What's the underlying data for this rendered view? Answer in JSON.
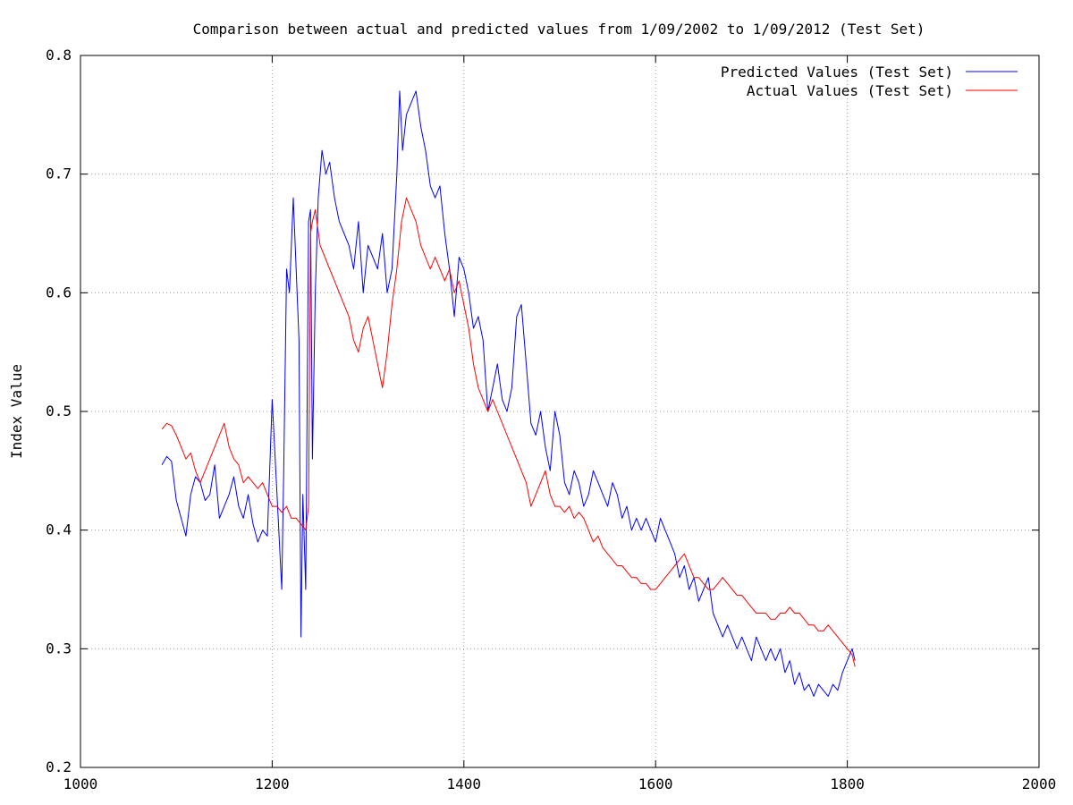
{
  "chart_data": {
    "type": "line",
    "title": "Comparison between actual and predicted values from 1/09/2002 to 1/09/2012 (Test Set)",
    "xlabel": "",
    "ylabel": "Index Value",
    "xlim": [
      1000,
      2000
    ],
    "ylim": [
      0.2,
      0.8
    ],
    "x_ticks": [
      "1000",
      "1200",
      "1400",
      "1600",
      "1800",
      "2000"
    ],
    "y_ticks": [
      "0.2",
      "0.3",
      "0.4",
      "0.5",
      "0.6",
      "0.7",
      "0.8"
    ],
    "grid": true,
    "legend_position": "top-right",
    "series": [
      {
        "name": "Predicted Values (Test Set)",
        "color": "#0000ff",
        "x": [
          1085,
          1090,
          1095,
          1100,
          1105,
          1110,
          1115,
          1120,
          1125,
          1130,
          1135,
          1140,
          1145,
          1150,
          1155,
          1160,
          1165,
          1170,
          1175,
          1180,
          1185,
          1190,
          1195,
          1200,
          1205,
          1210,
          1212,
          1215,
          1218,
          1222,
          1225,
          1228,
          1230,
          1232,
          1235,
          1238,
          1240,
          1242,
          1245,
          1248,
          1252,
          1256,
          1260,
          1265,
          1270,
          1275,
          1280,
          1285,
          1290,
          1295,
          1300,
          1305,
          1310,
          1315,
          1320,
          1325,
          1330,
          1333,
          1336,
          1340,
          1345,
          1350,
          1355,
          1360,
          1365,
          1370,
          1375,
          1380,
          1385,
          1390,
          1395,
          1400,
          1405,
          1410,
          1415,
          1420,
          1425,
          1430,
          1435,
          1440,
          1445,
          1450,
          1455,
          1460,
          1465,
          1470,
          1475,
          1480,
          1485,
          1490,
          1495,
          1500,
          1505,
          1510,
          1515,
          1520,
          1525,
          1530,
          1535,
          1540,
          1545,
          1550,
          1555,
          1560,
          1565,
          1570,
          1575,
          1580,
          1585,
          1590,
          1595,
          1600,
          1605,
          1610,
          1615,
          1620,
          1625,
          1630,
          1635,
          1640,
          1645,
          1650,
          1655,
          1660,
          1665,
          1670,
          1675,
          1680,
          1685,
          1690,
          1695,
          1700,
          1705,
          1710,
          1715,
          1720,
          1725,
          1730,
          1735,
          1740,
          1745,
          1750,
          1755,
          1760,
          1765,
          1770,
          1775,
          1780,
          1785,
          1790,
          1795,
          1800,
          1805,
          1808
        ],
        "values": [
          0.455,
          0.462,
          0.458,
          0.425,
          0.41,
          0.395,
          0.43,
          0.445,
          0.44,
          0.425,
          0.43,
          0.455,
          0.41,
          0.42,
          0.43,
          0.445,
          0.42,
          0.41,
          0.43,
          0.405,
          0.39,
          0.4,
          0.395,
          0.51,
          0.43,
          0.35,
          0.45,
          0.62,
          0.6,
          0.68,
          0.62,
          0.56,
          0.31,
          0.43,
          0.35,
          0.66,
          0.67,
          0.46,
          0.6,
          0.68,
          0.72,
          0.7,
          0.71,
          0.68,
          0.66,
          0.65,
          0.64,
          0.62,
          0.66,
          0.6,
          0.64,
          0.63,
          0.62,
          0.65,
          0.6,
          0.62,
          0.7,
          0.77,
          0.72,
          0.75,
          0.76,
          0.77,
          0.74,
          0.72,
          0.69,
          0.68,
          0.69,
          0.65,
          0.62,
          0.58,
          0.63,
          0.62,
          0.6,
          0.57,
          0.58,
          0.56,
          0.5,
          0.52,
          0.54,
          0.51,
          0.5,
          0.52,
          0.58,
          0.59,
          0.54,
          0.49,
          0.48,
          0.5,
          0.47,
          0.45,
          0.5,
          0.48,
          0.44,
          0.43,
          0.45,
          0.44,
          0.42,
          0.43,
          0.45,
          0.44,
          0.43,
          0.42,
          0.44,
          0.43,
          0.41,
          0.42,
          0.4,
          0.41,
          0.4,
          0.41,
          0.4,
          0.39,
          0.41,
          0.4,
          0.39,
          0.38,
          0.36,
          0.37,
          0.35,
          0.36,
          0.34,
          0.35,
          0.36,
          0.33,
          0.32,
          0.31,
          0.32,
          0.31,
          0.3,
          0.31,
          0.3,
          0.29,
          0.31,
          0.3,
          0.29,
          0.3,
          0.29,
          0.3,
          0.28,
          0.29,
          0.27,
          0.28,
          0.265,
          0.27,
          0.26,
          0.27,
          0.265,
          0.26,
          0.27,
          0.265,
          0.28,
          0.29,
          0.3,
          0.29
        ],
        "values_note_skip": null
      },
      {
        "name": "Actual Values (Test Set)",
        "color": "#ff0000",
        "x": [
          1085,
          1090,
          1095,
          1100,
          1105,
          1110,
          1115,
          1120,
          1125,
          1130,
          1135,
          1140,
          1145,
          1150,
          1155,
          1160,
          1165,
          1170,
          1175,
          1180,
          1185,
          1190,
          1195,
          1200,
          1205,
          1210,
          1215,
          1220,
          1225,
          1230,
          1235,
          1238,
          1240,
          1242,
          1245,
          1250,
          1255,
          1260,
          1265,
          1270,
          1275,
          1280,
          1285,
          1290,
          1295,
          1300,
          1305,
          1310,
          1315,
          1320,
          1325,
          1330,
          1335,
          1340,
          1345,
          1350,
          1355,
          1360,
          1365,
          1370,
          1375,
          1380,
          1385,
          1390,
          1395,
          1400,
          1405,
          1410,
          1415,
          1420,
          1425,
          1430,
          1435,
          1440,
          1445,
          1450,
          1455,
          1460,
          1465,
          1470,
          1475,
          1480,
          1485,
          1490,
          1495,
          1500,
          1505,
          1510,
          1515,
          1520,
          1525,
          1530,
          1535,
          1540,
          1545,
          1550,
          1555,
          1560,
          1565,
          1570,
          1575,
          1580,
          1585,
          1590,
          1595,
          1600,
          1605,
          1610,
          1615,
          1620,
          1625,
          1630,
          1635,
          1640,
          1645,
          1650,
          1655,
          1660,
          1665,
          1670,
          1675,
          1680,
          1685,
          1690,
          1695,
          1700,
          1705,
          1710,
          1715,
          1720,
          1725,
          1730,
          1735,
          1740,
          1745,
          1750,
          1755,
          1760,
          1765,
          1770,
          1775,
          1780,
          1785,
          1790,
          1795,
          1800,
          1805,
          1808
        ],
        "values": [
          0.485,
          0.49,
          0.488,
          0.48,
          0.47,
          0.46,
          0.465,
          0.45,
          0.44,
          0.45,
          0.46,
          0.47,
          0.48,
          0.49,
          0.47,
          0.46,
          0.455,
          0.44,
          0.445,
          0.44,
          0.435,
          0.44,
          0.43,
          0.42,
          0.42,
          0.415,
          0.42,
          0.41,
          0.41,
          0.405,
          0.4,
          0.42,
          0.65,
          0.66,
          0.67,
          0.64,
          0.63,
          0.62,
          0.61,
          0.6,
          0.59,
          0.58,
          0.56,
          0.55,
          0.57,
          0.58,
          0.56,
          0.54,
          0.52,
          0.55,
          0.59,
          0.62,
          0.66,
          0.68,
          0.67,
          0.66,
          0.64,
          0.63,
          0.62,
          0.63,
          0.62,
          0.61,
          0.62,
          0.6,
          0.61,
          0.59,
          0.57,
          0.54,
          0.52,
          0.51,
          0.5,
          0.51,
          0.5,
          0.49,
          0.48,
          0.47,
          0.46,
          0.45,
          0.44,
          0.42,
          0.43,
          0.44,
          0.45,
          0.43,
          0.42,
          0.42,
          0.415,
          0.42,
          0.41,
          0.415,
          0.41,
          0.4,
          0.39,
          0.395,
          0.385,
          0.38,
          0.375,
          0.37,
          0.37,
          0.365,
          0.36,
          0.36,
          0.355,
          0.355,
          0.35,
          0.35,
          0.355,
          0.36,
          0.365,
          0.37,
          0.375,
          0.38,
          0.37,
          0.36,
          0.36,
          0.355,
          0.35,
          0.35,
          0.355,
          0.36,
          0.355,
          0.35,
          0.345,
          0.345,
          0.34,
          0.335,
          0.33,
          0.33,
          0.33,
          0.325,
          0.325,
          0.33,
          0.33,
          0.335,
          0.33,
          0.33,
          0.325,
          0.32,
          0.32,
          0.315,
          0.315,
          0.32,
          0.315,
          0.31,
          0.305,
          0.3,
          0.295,
          0.285
        ]
      }
    ]
  }
}
